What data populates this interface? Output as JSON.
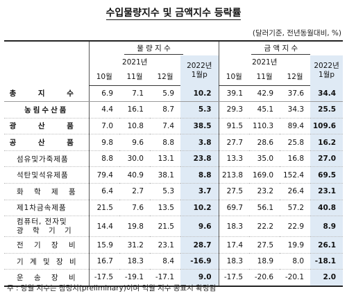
{
  "title": "수입물량지수 및 금액지수 등락률",
  "unit": "(달러기준, 전년동월대비, %)",
  "header": {
    "volume_group": "물 량 지 수",
    "value_group": "금 액 지 수",
    "year2021": "2021년",
    "year2022": "2022년",
    "jan_p": "1월p",
    "months": [
      "10월",
      "11월",
      "12월"
    ]
  },
  "rows": [
    {
      "label": "총 지 수",
      "v": [
        "6.9",
        "7.1",
        "5.9",
        "10.2"
      ],
      "a": [
        "39.1",
        "42.9",
        "37.6",
        "34.4"
      ]
    },
    {
      "label": "농림수산품",
      "v": [
        "4.4",
        "16.1",
        "8.7",
        "5.3"
      ],
      "a": [
        "29.3",
        "45.1",
        "34.3",
        "25.5"
      ]
    },
    {
      "label": "광 산 품",
      "v": [
        "7.0",
        "10.8",
        "7.4",
        "38.5"
      ],
      "a": [
        "91.5",
        "110.3",
        "89.4",
        "109.6"
      ]
    },
    {
      "label": "공 산 품",
      "v": [
        "9.8",
        "9.6",
        "8.8",
        "3.8"
      ],
      "a": [
        "27.7",
        "28.6",
        "25.8",
        "16.2"
      ]
    },
    {
      "label": "섬유및가죽제품",
      "v": [
        "8.8",
        "30.0",
        "13.1",
        "23.8"
      ],
      "a": [
        "13.3",
        "35.0",
        "16.8",
        "27.0"
      ]
    },
    {
      "label": "석탄및석유제품",
      "v": [
        "79.4",
        "40.9",
        "38.1",
        "8.8"
      ],
      "a": [
        "213.8",
        "169.0",
        "152.4",
        "69.5"
      ]
    },
    {
      "label": "화 학 제 품",
      "v": [
        "6.4",
        "2.7",
        "5.3",
        "3.7"
      ],
      "a": [
        "27.5",
        "23.2",
        "26.4",
        "23.1"
      ]
    },
    {
      "label": "제1차금속제품",
      "v": [
        "21.5",
        "7.6",
        "13.5",
        "10.2"
      ],
      "a": [
        "69.7",
        "56.1",
        "57.2",
        "40.8"
      ]
    },
    {
      "label1": "컴퓨터, 전자및",
      "label2": "광 학 기 기",
      "v": [
        "14.4",
        "19.8",
        "21.5",
        "9.6"
      ],
      "a": [
        "18.3",
        "22.2",
        "22.9",
        "8.9"
      ]
    },
    {
      "label": "전 기 장 비",
      "v": [
        "15.9",
        "31.2",
        "23.1",
        "28.7"
      ],
      "a": [
        "17.4",
        "27.5",
        "19.9",
        "26.1"
      ]
    },
    {
      "label": "기 계 및 장 비",
      "v": [
        "16.7",
        "18.3",
        "8.4",
        "-16.9"
      ],
      "a": [
        "18.3",
        "18.9",
        "8.0",
        "-18.1"
      ]
    },
    {
      "label": "운 송 장 비",
      "v": [
        "-17.5",
        "-19.1",
        "-17.1",
        "9.0"
      ],
      "a": [
        "-17.5",
        "-20.6",
        "-20.1",
        "2.0"
      ]
    }
  ],
  "footnote": "주 : 당월 지수는 잠정치(preliminary)이며 익월 지수 공표시 확정됨"
}
